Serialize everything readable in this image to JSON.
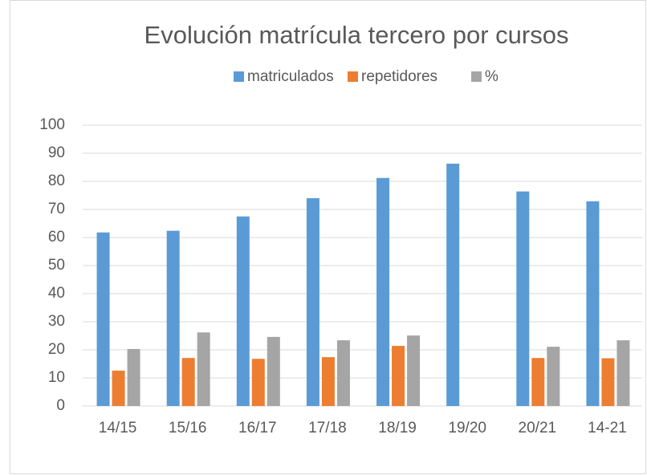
{
  "chart_data": {
    "type": "bar",
    "title": "Evolución matrícula tercero por cursos",
    "categories": [
      "14/15",
      "15/16",
      "16/17",
      "17/18",
      "18/19",
      "19/20",
      "20/21",
      "14-21"
    ],
    "series": [
      {
        "name": "matriculados",
        "color": "#5b9bd5",
        "values": [
          61.8,
          62.4,
          67.5,
          74,
          81.2,
          86.3,
          76.4,
          72.9
        ]
      },
      {
        "name": "repetidores",
        "color": "#ed7d31",
        "values": [
          12.6,
          17.1,
          16.8,
          17.4,
          21.4,
          null,
          17.1,
          17
        ]
      },
      {
        "name": "%",
        "color": "#a5a5a5",
        "values": [
          20.3,
          26.2,
          24.6,
          23.4,
          25.1,
          null,
          21.1,
          23.4
        ]
      }
    ],
    "ylim": [
      0,
      100
    ],
    "yticks": [
      0,
      10,
      20,
      30,
      40,
      50,
      60,
      70,
      80,
      90,
      100
    ],
    "grid": true,
    "legend": "top"
  }
}
